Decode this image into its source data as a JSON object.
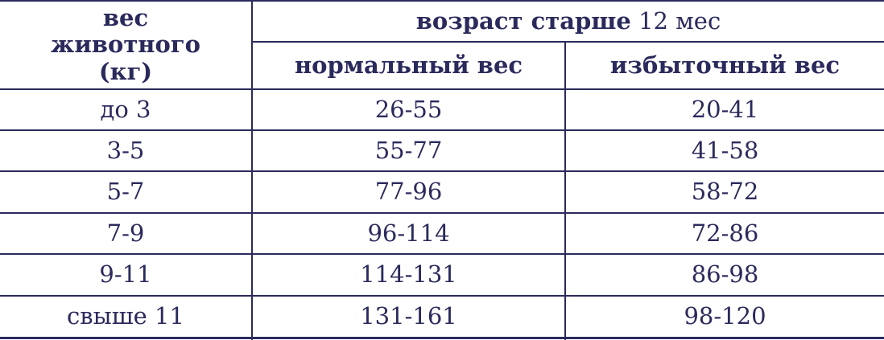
{
  "header": {
    "weight_col": "вес животного (кг)",
    "age_group_bold": "возраст старше",
    "age_group_rest": "12 мес",
    "normal": "нормальный вес",
    "overweight": "избыточный вес"
  },
  "rows": [
    {
      "weight": "до 3",
      "normal": "26-55",
      "overweight": "20-41"
    },
    {
      "weight": "3-5",
      "normal": "55-77",
      "overweight": "41-58"
    },
    {
      "weight": "5-7",
      "normal": "77-96",
      "overweight": "58-72"
    },
    {
      "weight": "7-9",
      "normal": "96-114",
      "overweight": "72-86"
    },
    {
      "weight": "9-11",
      "normal": "114-131",
      "overweight": "86-98"
    },
    {
      "weight": "свыше 11",
      "normal": "131-161",
      "overweight": "98-120"
    }
  ],
  "colors": {
    "text": "#2b2a5c",
    "border": "#2b2a5c"
  }
}
